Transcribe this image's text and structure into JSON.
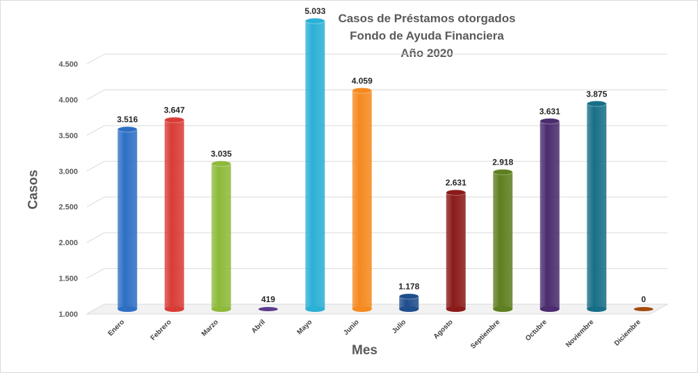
{
  "chart_data": {
    "type": "bar",
    "title_lines": [
      "Casos de Préstamos otorgados",
      "Fondo de Ayuda Financiera",
      "Año 2020"
    ],
    "xlabel": "Mes",
    "ylabel": "Casos",
    "categories": [
      "Enero",
      "Febrero",
      "Marzo",
      "Abril",
      "Mayo",
      "Junio",
      "Julio",
      "Agosto",
      "Septiembre",
      "Octubre",
      "Noviembre",
      "Diciembre"
    ],
    "values": [
      3516,
      3647,
      3035,
      419,
      5033,
      4059,
      1178,
      2631,
      2918,
      3631,
      3875,
      0
    ],
    "value_labels": [
      "3.516",
      "3.647",
      "3.035",
      "419",
      "5.033",
      "4.059",
      "1.178",
      "2.631",
      "2.918",
      "3.631",
      "3.875",
      "0"
    ],
    "ylim": [
      1000,
      4500
    ],
    "yticks": [
      1000,
      1500,
      2000,
      2500,
      3000,
      3500,
      4000,
      4500
    ],
    "ytick_labels": [
      "1.000",
      "1.500",
      "2.000",
      "2.500",
      "3.000",
      "3.500",
      "4.000",
      "4.500"
    ],
    "colors": [
      "#2e6fc4",
      "#d93c36",
      "#8dba3a",
      "#5b3a8c",
      "#2bb0d6",
      "#f58a1f",
      "#1f4e8c",
      "#8b1a1a",
      "#5e7f1f",
      "#4b2c6e",
      "#176f87",
      "#a34a0c"
    ],
    "grid": true,
    "legend": "none"
  }
}
